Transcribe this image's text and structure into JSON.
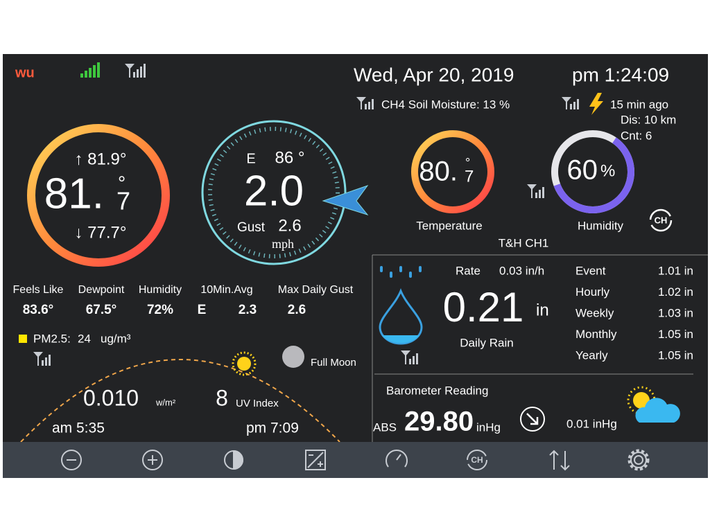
{
  "header": {
    "date": "Wed,  Apr  20,  2019",
    "time": "pm  1:24:09",
    "soil_moisture": "CH4 Soil Moisture: 13 %",
    "lightning": {
      "last": "15 min ago",
      "distance": "Dis: 10 km",
      "count": "Cnt:  6"
    }
  },
  "outdoor": {
    "high": "↑ 81.9°",
    "low": "↓ 77.7°",
    "temp_whole": "81.",
    "temp_decimal": "7",
    "temp_unit": "°"
  },
  "wind": {
    "direction": "E",
    "degrees": "86 °",
    "speed": "2.0",
    "gust_label": "Gust",
    "gust": "2.6",
    "unit": "mph"
  },
  "indoor": {
    "temp_whole": "80.",
    "temp_decimal": "7",
    "temp_unit": "°",
    "temp_label": "Temperature",
    "humidity": "60",
    "humidity_unit": "%",
    "humidity_label": "Humidity",
    "channel": "T&H CH1"
  },
  "stats": [
    {
      "label": "Feels Like",
      "value": "83.6°"
    },
    {
      "label": "Dewpoint",
      "value": "67.5°"
    },
    {
      "label": "Humidity",
      "value": "72%"
    },
    {
      "label": "10Min.Avg",
      "value": "E",
      "value2": "2.3"
    },
    {
      "label": "Max Daily Gust",
      "value": "2.6"
    }
  ],
  "pm25": {
    "label": "PM2.5:",
    "value": "24",
    "unit": "ug/m³"
  },
  "sun": {
    "moon": "Full Moon",
    "solar": "0.010",
    "solar_unit": "w/m²",
    "uv": "8",
    "uv_label": "UV Index",
    "sunrise": "am 5:35",
    "sunset": "pm 7:09"
  },
  "rain": {
    "rate_label": "Rate",
    "rate": "0.03 in/h",
    "daily": "0.21",
    "daily_unit": "in",
    "daily_label": "Daily Rain",
    "table": [
      {
        "label": "Event",
        "value": "1.01 in"
      },
      {
        "label": "Hourly",
        "value": "1.02 in"
      },
      {
        "label": "Weekly",
        "value": "1.03 in"
      },
      {
        "label": "Monthly",
        "value": "1.05 in"
      },
      {
        "label": "Yearly",
        "value": "1.05 in"
      }
    ]
  },
  "barometer": {
    "label": "Barometer Reading",
    "abs_label": "ABS",
    "value": "29.80",
    "unit": "inHg",
    "trend": "0.01 inHg"
  }
}
